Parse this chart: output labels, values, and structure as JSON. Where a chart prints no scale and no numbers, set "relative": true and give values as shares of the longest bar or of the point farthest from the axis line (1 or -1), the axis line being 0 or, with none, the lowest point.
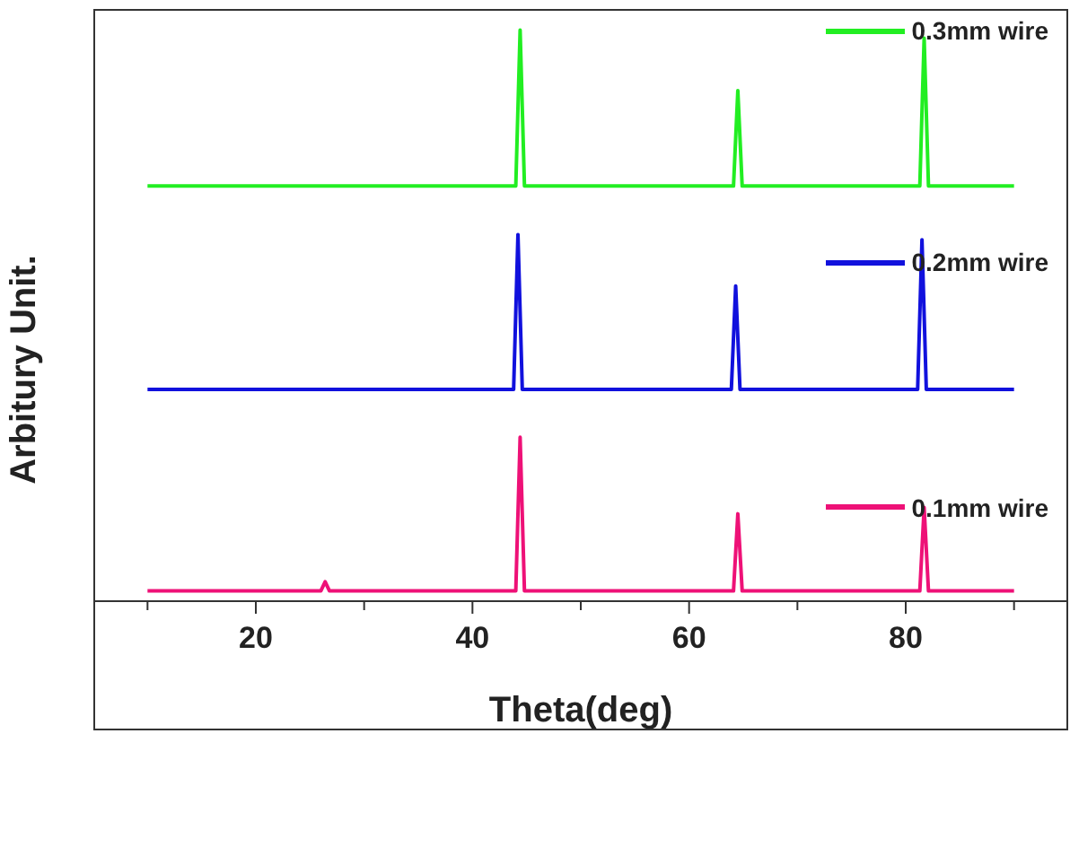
{
  "chart_data": {
    "type": "line",
    "relative": true,
    "xlabel": "Theta(deg)",
    "ylabel": "Arbitury Unit.",
    "xlim": [
      5,
      95
    ],
    "xticks": [
      {
        "value": 10,
        "label": null
      },
      20,
      {
        "value": 30,
        "label": null
      },
      40,
      {
        "value": 50,
        "label": null
      },
      60,
      {
        "value": 70,
        "label": null
      },
      80,
      {
        "value": 90,
        "label": null
      }
    ],
    "marker": "none",
    "line_style": "solid",
    "legend": "top right",
    "series": [
      {
        "name": "0.3mm wire",
        "color": "#22ee22",
        "x": [
          10,
          20,
          30,
          40,
          44.0,
          44.4,
          44.8,
          50,
          64.1,
          64.5,
          64.9,
          75,
          81.3,
          81.7,
          82.1,
          90
        ],
        "values": [
          0.727,
          0.727,
          0.727,
          0.727,
          0.727,
          1.0,
          0.727,
          0.727,
          0.727,
          0.894,
          0.727,
          0.727,
          0.727,
          0.986,
          0.727,
          0.727
        ]
      },
      {
        "name": "0.2mm wire",
        "color": "#1111dd",
        "x": [
          10,
          20,
          30,
          40,
          43.8,
          44.2,
          44.6,
          50,
          63.9,
          64.3,
          64.7,
          75,
          81.1,
          81.5,
          81.9,
          90
        ],
        "values": [
          0.371,
          0.371,
          0.371,
          0.371,
          0.371,
          0.642,
          0.371,
          0.371,
          0.371,
          0.552,
          0.371,
          0.371,
          0.371,
          0.633,
          0.371,
          0.371
        ]
      },
      {
        "name": "0.1mm wire",
        "color": "#ee1177",
        "x": [
          10,
          20,
          26.0,
          26.4,
          26.8,
          40,
          44.0,
          44.4,
          44.8,
          50,
          64.1,
          64.5,
          64.9,
          75,
          81.3,
          81.7,
          82.1,
          90
        ],
        "values": [
          0.018,
          0.018,
          0.018,
          0.034,
          0.018,
          0.018,
          0.018,
          0.287,
          0.018,
          0.018,
          0.018,
          0.153,
          0.018,
          0.018,
          0.018,
          0.164,
          0.018,
          0.018
        ]
      }
    ]
  }
}
